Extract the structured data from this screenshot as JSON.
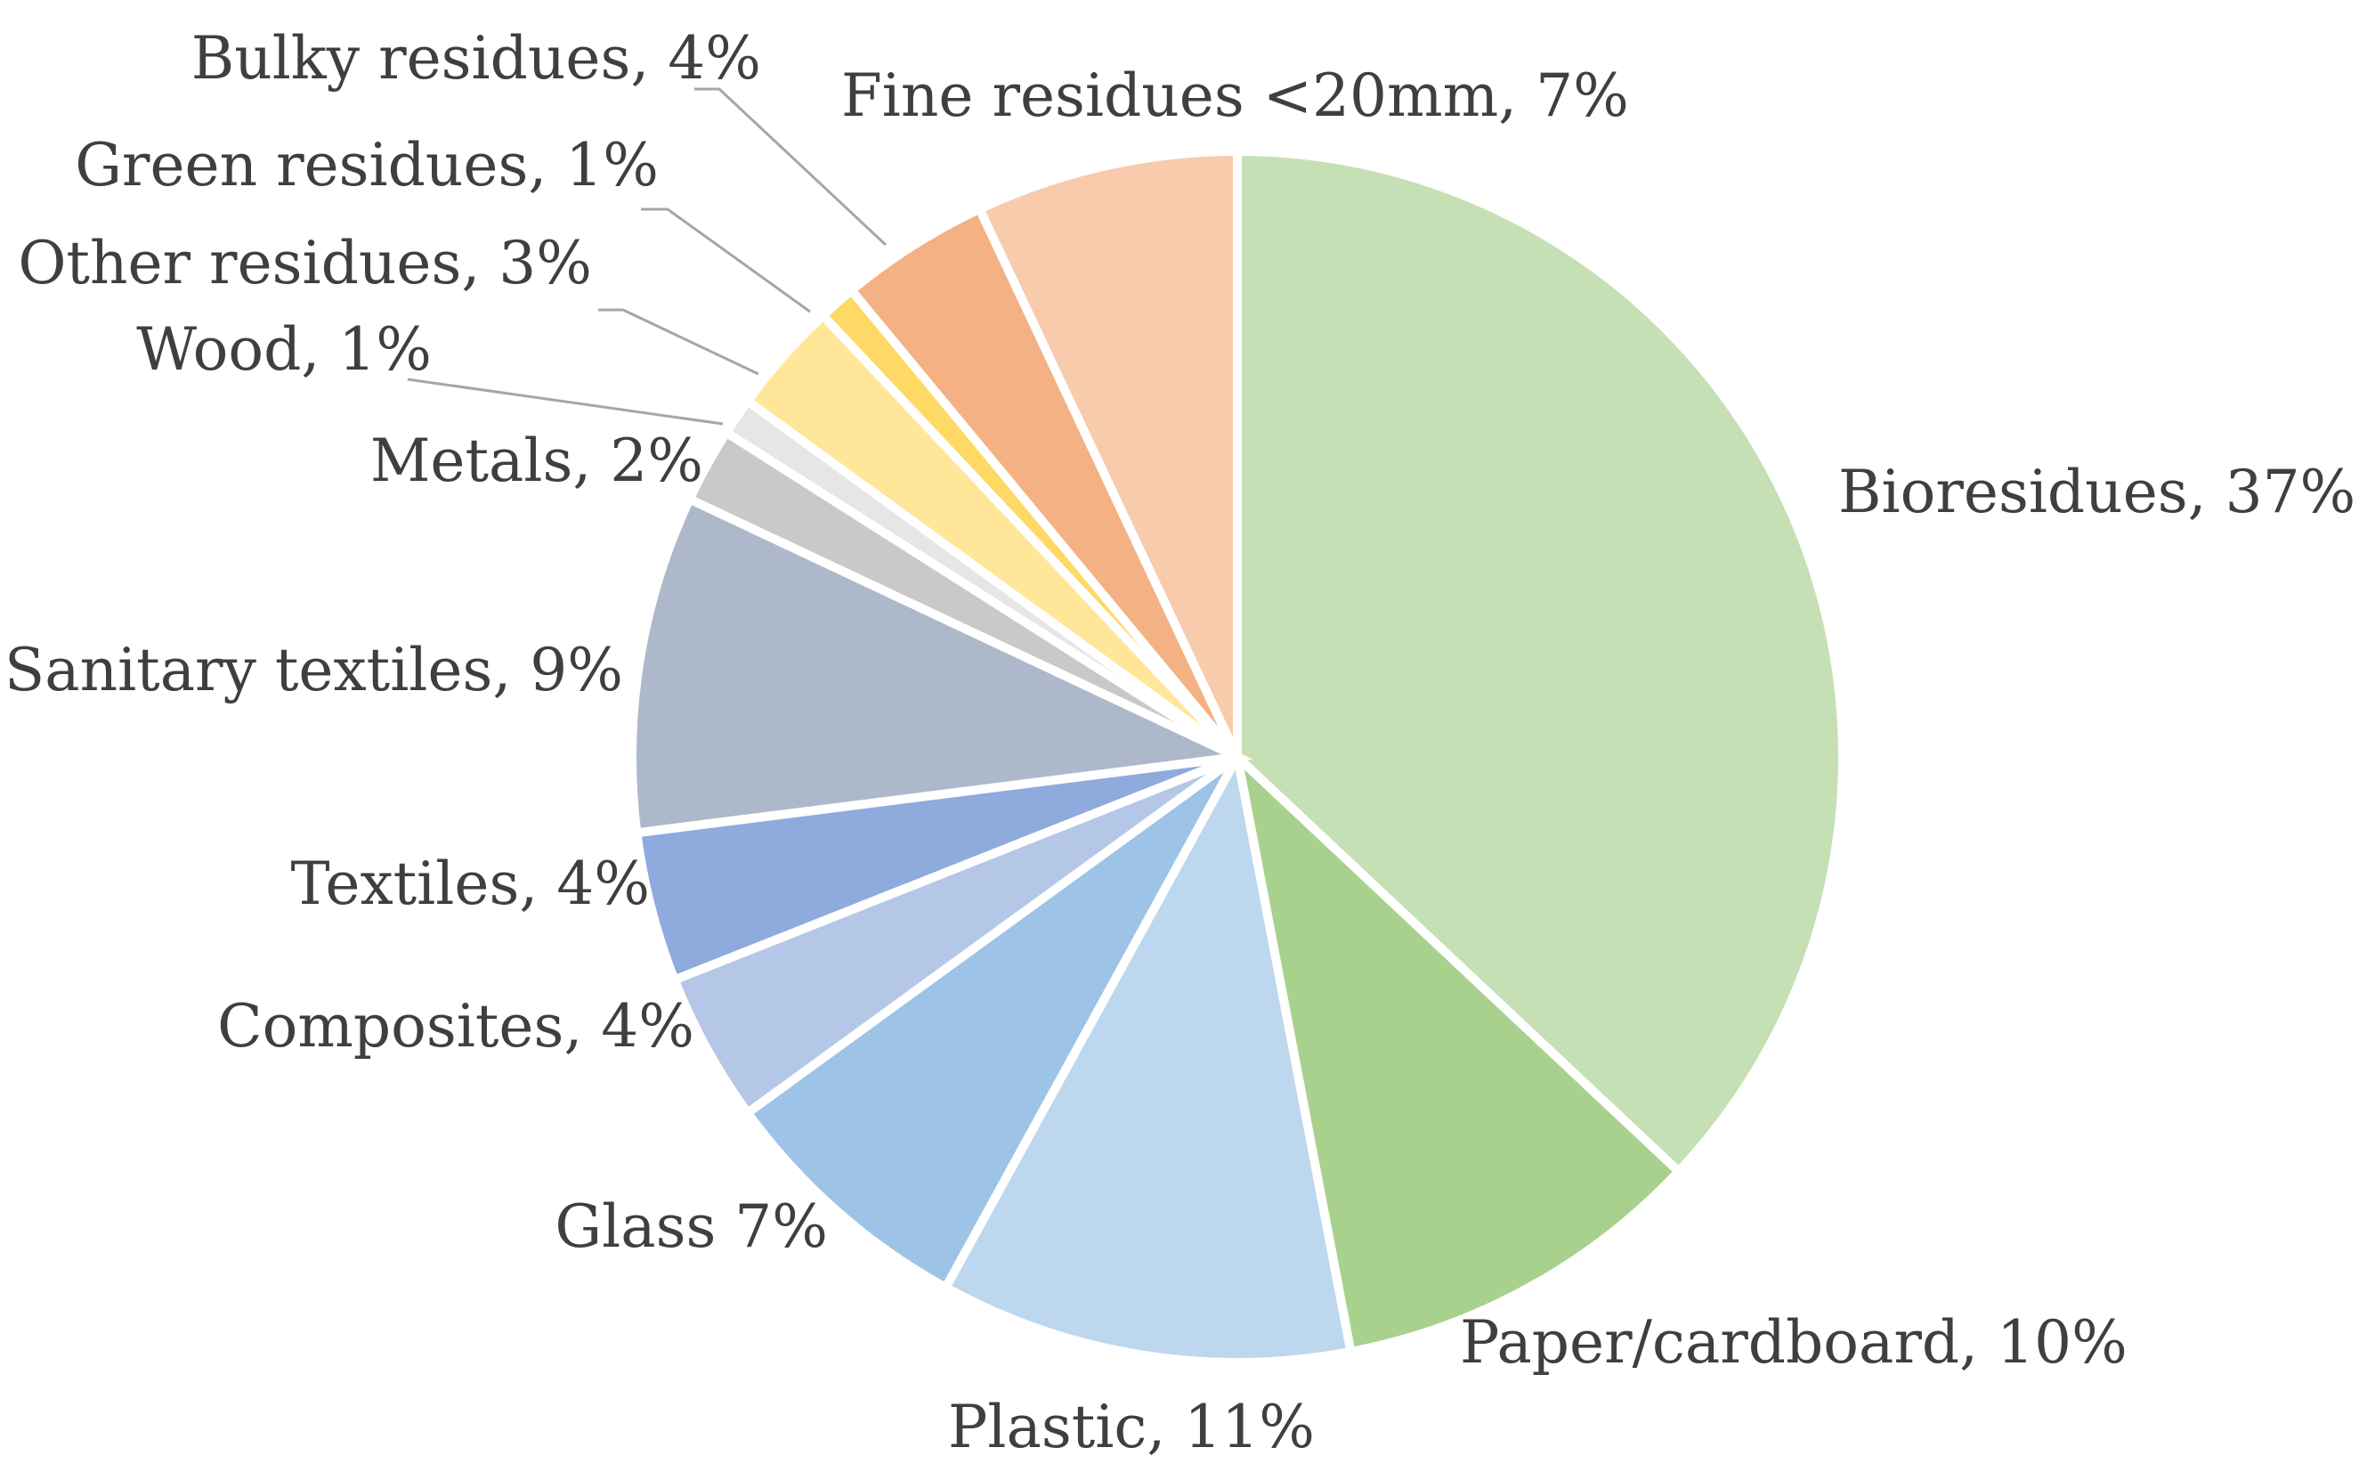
{
  "chart_data": {
    "type": "pie",
    "start": "12 o'clock",
    "direction": "clockwise",
    "slices": [
      {
        "name": "Bioresidues",
        "value": 37,
        "label": "Bioresidues, 37%",
        "color": "#c5e0b4"
      },
      {
        "name": "Paper/cardboard",
        "value": 10,
        "label": "Paper/cardboard, 10%",
        "color": "#a9d18e"
      },
      {
        "name": "Plastic",
        "value": 11,
        "label": "Plastic, 11%",
        "color": "#bdd7ee"
      },
      {
        "name": "Glass",
        "value": 7,
        "label": "Glass 7%",
        "color": "#9dc3e6"
      },
      {
        "name": "Composites",
        "value": 4,
        "label": "Composites, 4%",
        "color": "#b4c7e7"
      },
      {
        "name": "Textiles",
        "value": 4,
        "label": "Textiles, 4%",
        "color": "#8faadc"
      },
      {
        "name": "Sanitary textiles",
        "value": 9,
        "label": "Sanitary textiles, 9%",
        "color": "#adb9ca"
      },
      {
        "name": "Metals",
        "value": 2,
        "label": "Metals, 2%",
        "color": "#c9c9c9"
      },
      {
        "name": "Wood",
        "value": 1,
        "label": "Wood, 1%",
        "color": "#e7e6e6"
      },
      {
        "name": "Other residues",
        "value": 3,
        "label": "Other residues, 3%",
        "color": "#ffe699"
      },
      {
        "name": "Green residues",
        "value": 1,
        "label": "Green residues, 1%",
        "color": "#ffd966"
      },
      {
        "name": "Bulky residues",
        "value": 4,
        "label": "Bulky residues, 4%",
        "color": "#f4b183"
      },
      {
        "name": "Fine residues <20mm",
        "value": 7,
        "label": "Fine residues <20mm, 7%",
        "color": "#f8cbad"
      }
    ]
  }
}
